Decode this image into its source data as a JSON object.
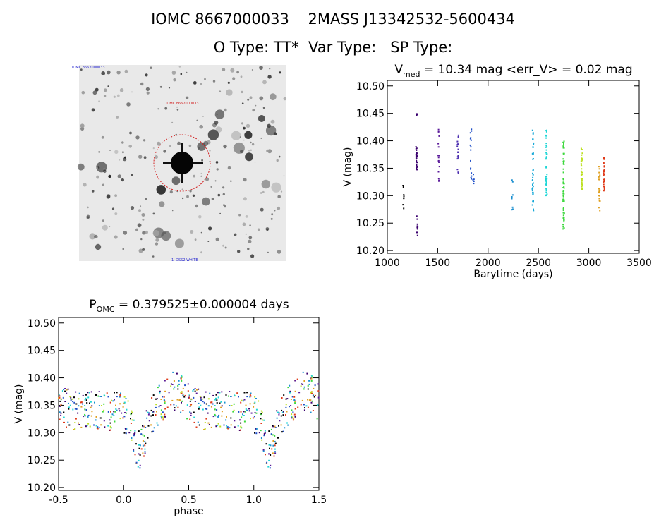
{
  "header": {
    "line1": "IOMC 8667000033    2MASS J13342532-5600434",
    "line2": "O Type: TT*  Var Type:   SP Type:"
  },
  "finder_chart": {
    "top_left_label": "IOMC 8667000033",
    "top_label": "IOMC 8667000033",
    "bottom_label": "1' DSS2 WHITE",
    "circle_color": "#d22020"
  },
  "chart_data": [
    {
      "type": "scatter",
      "name": "light-curve",
      "title_prefix": "V",
      "title_sub": "med",
      "title_rest": " = 10.34 mag <err_V> = 0.02 mag",
      "xlabel": "Barytime (days)",
      "ylabel": "V (mag)",
      "xlim": [
        1000,
        3500
      ],
      "ylim": [
        10.51,
        10.195
      ],
      "xticks": [
        1000,
        1500,
        2000,
        2500,
        3000,
        3500
      ],
      "yticks": [
        10.2,
        10.25,
        10.3,
        10.35,
        10.4,
        10.45,
        10.5
      ],
      "clusters": [
        {
          "t": 1160,
          "ymin": 10.27,
          "ymax": 10.32,
          "color": "#000000",
          "n": 8
        },
        {
          "t": 1290,
          "ymin": 10.345,
          "ymax": 10.4,
          "color": "#3a006e",
          "n": 26
        },
        {
          "t": 1298,
          "ymin": 10.225,
          "ymax": 10.265,
          "color": "#3a006e",
          "n": 10
        },
        {
          "t": 1295,
          "ymin": 10.435,
          "ymax": 10.45,
          "color": "#3a006e",
          "n": 3
        },
        {
          "t": 1510,
          "ymin": 10.32,
          "ymax": 10.43,
          "color": "#5a1a9a",
          "n": 18
        },
        {
          "t": 1700,
          "ymin": 10.34,
          "ymax": 10.41,
          "color": "#4d2fb0",
          "n": 20
        },
        {
          "t": 1830,
          "ymin": 10.33,
          "ymax": 10.43,
          "color": "#2050c8",
          "n": 16
        },
        {
          "t": 1855,
          "ymin": 10.32,
          "ymax": 10.35,
          "color": "#2050c8",
          "n": 6
        },
        {
          "t": 2240,
          "ymin": 10.27,
          "ymax": 10.33,
          "color": "#1a8fd0",
          "n": 8
        },
        {
          "t": 2445,
          "ymin": 10.27,
          "ymax": 10.42,
          "color": "#15a8d8",
          "n": 40
        },
        {
          "t": 2580,
          "ymin": 10.3,
          "ymax": 10.42,
          "color": "#1ed6d6",
          "n": 40
        },
        {
          "t": 2750,
          "ymin": 10.235,
          "ymax": 10.4,
          "color": "#3cd83c",
          "n": 70
        },
        {
          "t": 2930,
          "ymin": 10.31,
          "ymax": 10.39,
          "color": "#bde020",
          "n": 36
        },
        {
          "t": 3105,
          "ymin": 10.265,
          "ymax": 10.355,
          "color": "#e0a020",
          "n": 24
        },
        {
          "t": 3150,
          "ymin": 10.3,
          "ymax": 10.375,
          "color": "#e03a1a",
          "n": 30
        }
      ]
    },
    {
      "type": "scatter",
      "name": "phase-curve",
      "title_prefix": "P",
      "title_sub": "OMC",
      "title_rest": " = 0.379525±0.000004 days",
      "xlabel": "phase",
      "ylabel": "V (mag)",
      "xlim": [
        -0.5,
        1.5
      ],
      "ylim": [
        10.51,
        10.195
      ],
      "xticks": [
        -0.5,
        0.0,
        0.5,
        1.0,
        1.5
      ],
      "xtick_labels": [
        "-0.5",
        "0.0",
        "0.5",
        "1.0",
        "1.5"
      ],
      "yticks": [
        10.2,
        10.25,
        10.3,
        10.35,
        10.4,
        10.45,
        10.5
      ],
      "mag_mean": 10.34,
      "amplitude": 0.07,
      "scatter": 0.045,
      "colors": [
        "#000000",
        "#3a006e",
        "#5a1a9a",
        "#2050c8",
        "#1a8fd0",
        "#1ed6d6",
        "#3cd83c",
        "#bde020",
        "#e0a020",
        "#e03a1a"
      ],
      "points_per_cycle": 320
    }
  ]
}
